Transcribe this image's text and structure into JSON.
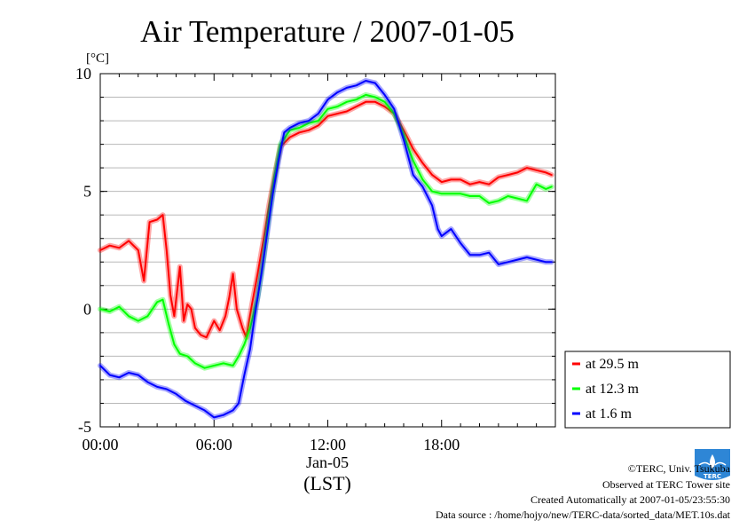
{
  "chart_data": {
    "type": "line",
    "title": "Air Temperature / 2007-01-05",
    "ylabel": "[°C]",
    "xlabel": "(LST)",
    "x_date_label": "Jan-05",
    "xlim": [
      0,
      24
    ],
    "ylim": [
      -5,
      10
    ],
    "x_ticks": [
      {
        "value": 0,
        "label": "00:00"
      },
      {
        "value": 6,
        "label": "06:00"
      },
      {
        "value": 12,
        "label": "12:00"
      },
      {
        "value": 18,
        "label": "18:00"
      }
    ],
    "y_ticks": [
      {
        "value": -5,
        "label": "-5"
      },
      {
        "value": 0,
        "label": "0"
      },
      {
        "value": 5,
        "label": "5"
      },
      {
        "value": 10,
        "label": "10"
      }
    ],
    "grid": true,
    "legend_position": "right",
    "series": [
      {
        "name": "at 29.5 m",
        "color": "#ff0000",
        "points": [
          [
            0,
            2.5
          ],
          [
            0.5,
            2.7
          ],
          [
            1,
            2.6
          ],
          [
            1.5,
            2.9
          ],
          [
            2,
            2.5
          ],
          [
            2.3,
            1.2
          ],
          [
            2.6,
            3.7
          ],
          [
            3,
            3.8
          ],
          [
            3.3,
            4.0
          ],
          [
            3.5,
            2.5
          ],
          [
            3.7,
            0.6
          ],
          [
            3.9,
            -0.3
          ],
          [
            4.2,
            1.8
          ],
          [
            4.4,
            -0.5
          ],
          [
            4.6,
            0.2
          ],
          [
            4.8,
            0.0
          ],
          [
            5,
            -0.8
          ],
          [
            5.3,
            -1.1
          ],
          [
            5.6,
            -1.2
          ],
          [
            6,
            -0.5
          ],
          [
            6.3,
            -0.9
          ],
          [
            6.6,
            -0.3
          ],
          [
            6.8,
            0.5
          ],
          [
            7,
            1.5
          ],
          [
            7.2,
            0.0
          ],
          [
            7.5,
            -0.8
          ],
          [
            7.7,
            -1.2
          ],
          [
            8,
            0.2
          ],
          [
            8.3,
            1.5
          ],
          [
            8.6,
            2.9
          ],
          [
            8.9,
            4.4
          ],
          [
            9.2,
            5.7
          ],
          [
            9.5,
            6.9
          ],
          [
            10,
            7.3
          ],
          [
            10.5,
            7.5
          ],
          [
            11,
            7.6
          ],
          [
            11.5,
            7.8
          ],
          [
            12,
            8.2
          ],
          [
            12.5,
            8.3
          ],
          [
            13,
            8.4
          ],
          [
            13.5,
            8.6
          ],
          [
            14,
            8.8
          ],
          [
            14.5,
            8.8
          ],
          [
            15,
            8.6
          ],
          [
            15.5,
            8.3
          ],
          [
            16,
            7.6
          ],
          [
            16.5,
            6.8
          ],
          [
            17,
            6.2
          ],
          [
            17.5,
            5.7
          ],
          [
            18,
            5.4
          ],
          [
            18.5,
            5.5
          ],
          [
            19,
            5.5
          ],
          [
            19.5,
            5.3
          ],
          [
            20,
            5.4
          ],
          [
            20.5,
            5.3
          ],
          [
            21,
            5.6
          ],
          [
            21.5,
            5.7
          ],
          [
            22,
            5.8
          ],
          [
            22.5,
            6.0
          ],
          [
            23,
            5.9
          ],
          [
            23.5,
            5.8
          ],
          [
            23.8,
            5.7
          ]
        ]
      },
      {
        "name": "at 12.3 m",
        "color": "#00ff00",
        "points": [
          [
            0,
            0.0
          ],
          [
            0.5,
            -0.1
          ],
          [
            1,
            0.1
          ],
          [
            1.5,
            -0.3
          ],
          [
            2,
            -0.5
          ],
          [
            2.5,
            -0.3
          ],
          [
            3,
            0.3
          ],
          [
            3.3,
            0.4
          ],
          [
            3.6,
            -0.6
          ],
          [
            3.9,
            -1.5
          ],
          [
            4.2,
            -1.9
          ],
          [
            4.6,
            -2.0
          ],
          [
            5,
            -2.3
          ],
          [
            5.5,
            -2.5
          ],
          [
            6,
            -2.4
          ],
          [
            6.5,
            -2.3
          ],
          [
            7,
            -2.4
          ],
          [
            7.3,
            -2.0
          ],
          [
            7.6,
            -1.5
          ],
          [
            7.9,
            -0.8
          ],
          [
            8.3,
            0.5
          ],
          [
            8.6,
            2.1
          ],
          [
            8.9,
            4.0
          ],
          [
            9.2,
            5.6
          ],
          [
            9.5,
            7.0
          ],
          [
            10,
            7.6
          ],
          [
            10.5,
            7.7
          ],
          [
            11,
            7.9
          ],
          [
            11.5,
            8.0
          ],
          [
            12,
            8.5
          ],
          [
            12.5,
            8.6
          ],
          [
            13,
            8.8
          ],
          [
            13.5,
            8.9
          ],
          [
            14,
            9.1
          ],
          [
            14.5,
            9.0
          ],
          [
            15,
            8.8
          ],
          [
            15.5,
            8.3
          ],
          [
            16,
            7.4
          ],
          [
            16.5,
            6.3
          ],
          [
            17,
            5.5
          ],
          [
            17.5,
            5.0
          ],
          [
            18,
            4.9
          ],
          [
            18.5,
            4.9
          ],
          [
            19,
            4.9
          ],
          [
            19.5,
            4.8
          ],
          [
            20,
            4.8
          ],
          [
            20.5,
            4.5
          ],
          [
            21,
            4.6
          ],
          [
            21.5,
            4.8
          ],
          [
            22,
            4.7
          ],
          [
            22.5,
            4.6
          ],
          [
            23,
            5.3
          ],
          [
            23.5,
            5.1
          ],
          [
            23.8,
            5.2
          ]
        ]
      },
      {
        "name": "at 1.6 m",
        "color": "#0000ff",
        "points": [
          [
            0,
            -2.4
          ],
          [
            0.5,
            -2.8
          ],
          [
            1,
            -2.9
          ],
          [
            1.5,
            -2.7
          ],
          [
            2,
            -2.8
          ],
          [
            2.5,
            -3.1
          ],
          [
            3,
            -3.3
          ],
          [
            3.5,
            -3.4
          ],
          [
            4,
            -3.6
          ],
          [
            4.5,
            -3.9
          ],
          [
            5,
            -4.1
          ],
          [
            5.5,
            -4.3
          ],
          [
            6,
            -4.6
          ],
          [
            6.5,
            -4.5
          ],
          [
            7,
            -4.3
          ],
          [
            7.3,
            -4.0
          ],
          [
            7.6,
            -2.8
          ],
          [
            7.9,
            -1.7
          ],
          [
            8.2,
            0.0
          ],
          [
            8.5,
            1.5
          ],
          [
            8.8,
            3.2
          ],
          [
            9.1,
            4.9
          ],
          [
            9.4,
            6.3
          ],
          [
            9.7,
            7.5
          ],
          [
            10,
            7.7
          ],
          [
            10.5,
            7.9
          ],
          [
            11,
            8.0
          ],
          [
            11.5,
            8.3
          ],
          [
            12,
            8.9
          ],
          [
            12.5,
            9.2
          ],
          [
            13,
            9.4
          ],
          [
            13.5,
            9.5
          ],
          [
            14,
            9.7
          ],
          [
            14.5,
            9.6
          ],
          [
            15,
            9.1
          ],
          [
            15.5,
            8.5
          ],
          [
            16,
            7.2
          ],
          [
            16.5,
            5.7
          ],
          [
            17,
            5.2
          ],
          [
            17.5,
            4.4
          ],
          [
            17.8,
            3.4
          ],
          [
            18,
            3.1
          ],
          [
            18.5,
            3.4
          ],
          [
            19,
            2.8
          ],
          [
            19.5,
            2.3
          ],
          [
            20,
            2.3
          ],
          [
            20.5,
            2.4
          ],
          [
            21,
            1.9
          ],
          [
            21.5,
            2.0
          ],
          [
            22,
            2.1
          ],
          [
            22.5,
            2.2
          ],
          [
            23,
            2.1
          ],
          [
            23.5,
            2.0
          ],
          [
            23.8,
            2.0
          ]
        ]
      }
    ]
  },
  "footer": {
    "copyright": "©TERC, Univ. Tsukuba",
    "observed": "Observed at TERC Tower site",
    "created": "Created Automatically at 2007-01-05/23:55:30",
    "source": "Data source : /home/hojyo/new/TERC-data/sorted_data/MET.10s.dat"
  },
  "logo": {
    "text": "TERC",
    "color": "#2e86d6"
  }
}
